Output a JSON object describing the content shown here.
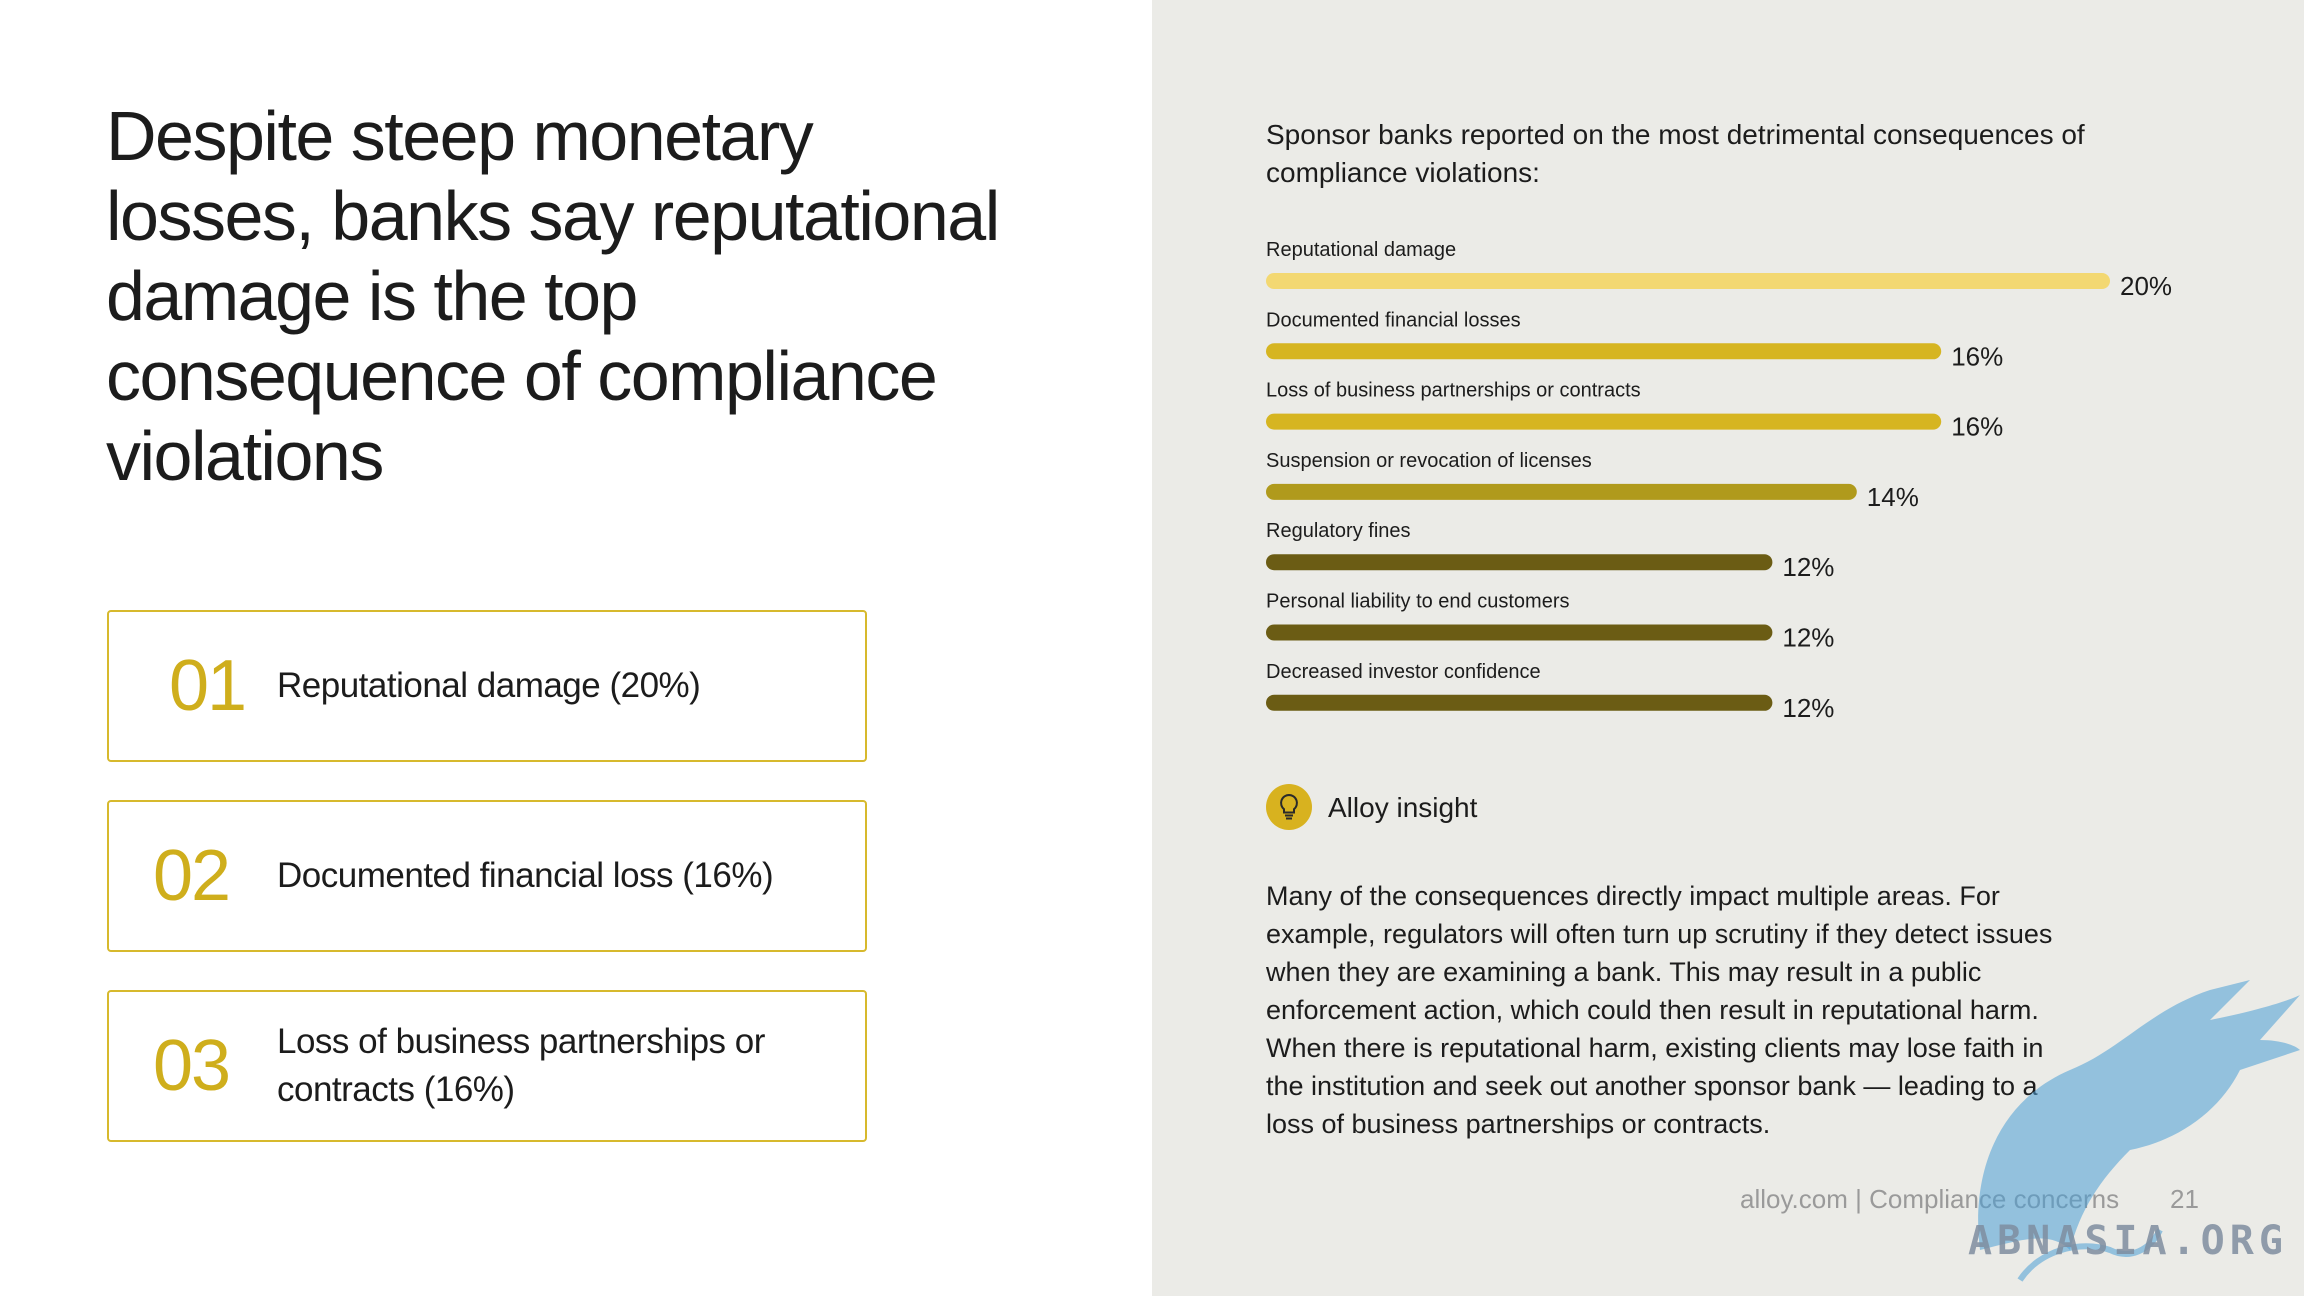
{
  "headline": "Despite steep monetary losses, banks say reputational damage is the top consequence of compliance violations",
  "cards": [
    {
      "number": "01",
      "text": "Reputational damage (20%)"
    },
    {
      "number": "02",
      "text": "Documented financial loss (16%)"
    },
    {
      "number": "03",
      "text": "Loss of business partnerships or contracts (16%)"
    }
  ],
  "chart_data": {
    "type": "bar",
    "orientation": "horizontal",
    "title": "Sponsor banks reported on the most detrimental consequences of compliance violations:",
    "categories": [
      "Reputational damage",
      "Documented financial losses",
      "Loss of business partnerships or contracts",
      "Suspension or revocation of licenses",
      "Regulatory fines",
      "Personal liability to end customers",
      "Decreased investor confidence"
    ],
    "values": [
      20,
      16,
      16,
      14,
      12,
      12,
      12
    ],
    "value_labels": [
      "20%",
      "16%",
      "16%",
      "14%",
      "12%",
      "12%",
      "12%"
    ],
    "unit": "%",
    "xlim": [
      0,
      20
    ],
    "bar_colors": [
      "#f3d872",
      "#d6b521",
      "#d6b521",
      "#b09a1c",
      "#6b5c14",
      "#6b5c14",
      "#6b5c14"
    ],
    "grid": false
  },
  "insight": {
    "label": "Alloy insight",
    "icon": "lightbulb-icon",
    "body": "Many of the consequences directly impact multiple areas. For example, regulators will often turn up scrutiny if they detect issues when they are examining a bank. This may result in a public enforcement action, which could then result in reputational harm. When there is reputational harm, existing clients may lose faith in the institution and seek out another sponsor bank — leading to a loss of business partnerships or contracts."
  },
  "footer": {
    "text": "alloy.com | Compliance concerns",
    "page": "21"
  },
  "watermark": {
    "text": "ABNASIA.ORG"
  },
  "colors": {
    "accent": "#d6b521",
    "panel_bg": "#ebebe7"
  }
}
